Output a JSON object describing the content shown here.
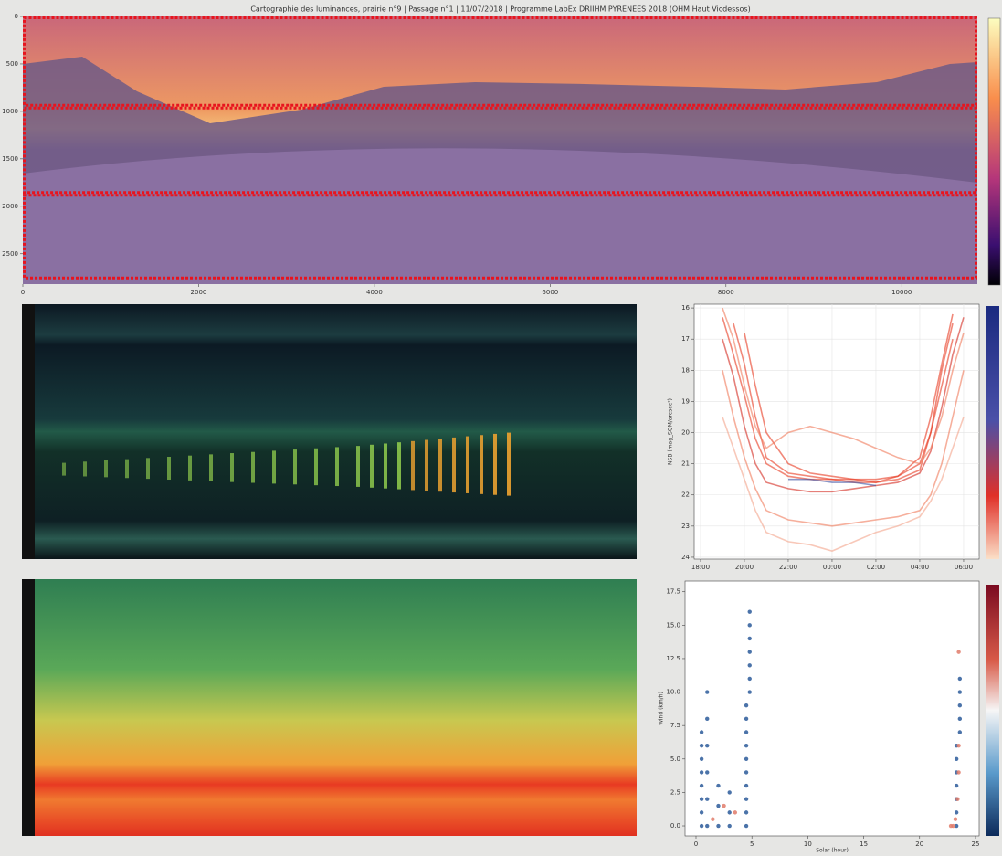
{
  "chart_data": [
    {
      "type": "heatmap",
      "title": "Cartographie des luminances, prairie n°9 | Passage n°1 | 11/07/2018 | Programme LabEx DRIIHM PYRENEES 2018 (OHM Haut Vicdessos)",
      "xlim": [
        0,
        10860
      ],
      "ylim": [
        2820,
        0
      ],
      "xticks": [
        0,
        2000,
        4000,
        6000,
        8000,
        10000
      ],
      "yticks": [
        0,
        500,
        1000,
        1500,
        2000,
        2500
      ],
      "regions": [
        [
          0,
          950
        ],
        [
          950,
          1870
        ],
        [
          1870,
          2770
        ]
      ],
      "region_color": "#e8141e"
    },
    {
      "type": "line",
      "ylabel": "NSB (mag_SQM/arcsec²)",
      "xlim": [
        17.71,
        30.71
      ],
      "ylim": [
        24.06,
        15.88
      ],
      "xticks": [
        {
          "value": 18,
          "label": "18:00"
        },
        {
          "value": 20,
          "label": "20:00"
        },
        {
          "value": 22,
          "label": "22:00"
        },
        {
          "value": 24,
          "label": "00:00"
        },
        {
          "value": 26,
          "label": "02:00"
        },
        {
          "value": 28,
          "label": "04:00"
        },
        {
          "value": 30,
          "label": "06:00"
        }
      ],
      "yticks": [
        16,
        17,
        18,
        19,
        20,
        21,
        22,
        23,
        24
      ],
      "grid": true,
      "x": [
        19,
        19.5,
        20,
        20.5,
        21,
        22,
        23,
        24,
        25,
        26,
        27,
        28,
        28.5,
        29,
        29.5,
        30
      ],
      "series": [
        {
          "color": "#e8381f",
          "values": [
            16.3,
            17.5,
            18.8,
            20.2,
            21.0,
            21.4,
            21.5,
            21.5,
            21.6,
            21.6,
            21.5,
            21.2,
            20.0,
            18.5,
            17.0,
            null
          ]
        },
        {
          "color": "#e8381f",
          "values": [
            null,
            16.5,
            17.8,
            19.5,
            20.8,
            21.3,
            21.4,
            21.5,
            21.5,
            21.6,
            21.4,
            20.8,
            19.5,
            17.8,
            16.2,
            null
          ]
        },
        {
          "color": "#d42a20",
          "values": [
            17.0,
            18.2,
            19.8,
            21.0,
            21.6,
            21.8,
            21.9,
            21.9,
            21.8,
            21.7,
            21.6,
            21.3,
            20.6,
            19.2,
            17.5,
            16.3
          ]
        },
        {
          "color": "#e8381f",
          "values": [
            null,
            null,
            16.8,
            18.5,
            20.0,
            21.0,
            21.3,
            21.4,
            21.5,
            21.5,
            21.4,
            21.0,
            20.0,
            18.0,
            16.5,
            null
          ]
        },
        {
          "color": "#f07a5a",
          "values": [
            18.0,
            19.5,
            20.8,
            21.8,
            22.5,
            22.8,
            22.9,
            23.0,
            22.9,
            22.8,
            22.7,
            22.5,
            22.0,
            21.0,
            19.5,
            18.0
          ]
        },
        {
          "color": "#f07a5a",
          "values": [
            16.0,
            17.0,
            18.5,
            19.8,
            20.5,
            20.0,
            19.8,
            20.0,
            20.2,
            20.5,
            20.8,
            21.0,
            20.5,
            19.5,
            18.0,
            16.8
          ]
        },
        {
          "color": "#f4a38a",
          "values": [
            19.5,
            20.5,
            21.5,
            22.5,
            23.2,
            23.5,
            23.6,
            23.8,
            23.5,
            23.2,
            23.0,
            22.7,
            22.2,
            21.5,
            20.5,
            19.5
          ]
        },
        {
          "color": "#3a4fa0",
          "values": [
            null,
            null,
            null,
            null,
            null,
            21.5,
            21.5,
            21.6,
            21.6,
            21.7,
            null,
            null,
            null,
            null,
            null,
            null
          ]
        }
      ]
    },
    {
      "type": "scatter",
      "ylabel": "Wind (km/h)",
      "xlabel": "Solar (hour)",
      "xlim": [
        -0.98,
        25.33
      ],
      "ylim": [
        -0.75,
        18.3
      ],
      "xticks": [
        0,
        5,
        10,
        15,
        20,
        25
      ],
      "yticks": [
        {
          "value": 0,
          "label": "0.0"
        },
        2.5,
        {
          "value": 5,
          "label": "5.0"
        },
        7.5,
        {
          "value": 10,
          "label": "10.0"
        },
        12.5,
        {
          "value": 15,
          "label": "15.0"
        },
        17.5
      ],
      "series": [
        {
          "color": "#2b5a9a",
          "x": [
            0.5,
            0.5,
            0.5,
            0.5,
            0.5,
            0.5,
            0.5,
            0.5,
            1,
            1,
            1,
            1,
            1,
            1,
            2,
            2,
            2,
            3,
            3,
            3,
            4.5,
            4.5,
            4.5,
            4.5,
            4.5,
            4.5,
            4.5,
            4.5,
            4.5,
            4.5,
            4.8,
            4.8,
            4.8,
            4.8,
            4.8,
            4.8,
            4.8,
            23.3,
            23.3,
            23.3,
            23.3,
            23.3,
            23.3,
            23.3,
            23.6,
            23.6,
            23.6,
            23.6,
            23.6
          ],
          "values": [
            0,
            1,
            2,
            3,
            4,
            5,
            6,
            7,
            0,
            2,
            4,
            6,
            8,
            10,
            0,
            1.5,
            3,
            0,
            1,
            2.5,
            0,
            1,
            2,
            3,
            4,
            5,
            6,
            7,
            8,
            9,
            10,
            11,
            12,
            13,
            14,
            15,
            16,
            0,
            1,
            2,
            3,
            4,
            5,
            6,
            7,
            8,
            9,
            10,
            11
          ]
        },
        {
          "color": "#e07b6a",
          "x": [
            1.5,
            2.5,
            3.5,
            22.8,
            23,
            23.2,
            23.4,
            23.5,
            23.5,
            23.5
          ],
          "values": [
            0.5,
            1.5,
            1,
            0,
            0,
            0.5,
            2,
            4,
            6,
            13
          ]
        }
      ]
    }
  ]
}
